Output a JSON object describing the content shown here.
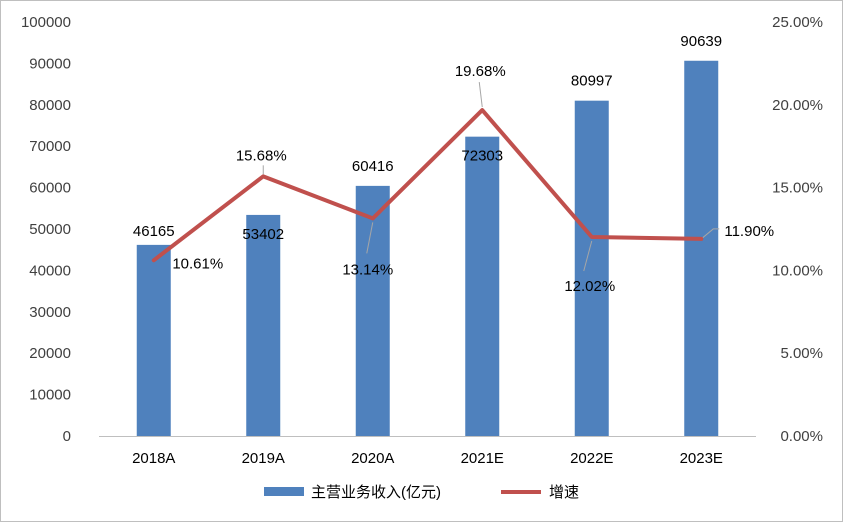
{
  "chart_data": {
    "type": "bar",
    "categories": [
      "2018A",
      "2019A",
      "2020A",
      "2021E",
      "2022E",
      "2023E"
    ],
    "series": [
      {
        "name": "主营业务收入(亿元)",
        "chart": "bar",
        "axis": "left",
        "color": "#4f81bd",
        "values": [
          46165,
          53402,
          60416,
          72303,
          80997,
          90639
        ],
        "labels": [
          "46165",
          "53402",
          "60416",
          "72303",
          "80997",
          "90639"
        ]
      },
      {
        "name": "增速",
        "chart": "line",
        "axis": "right",
        "color": "#c0504d",
        "values": [
          10.61,
          15.68,
          13.14,
          19.68,
          12.02,
          11.9
        ],
        "labels": [
          "10.61%",
          "15.68%",
          "13.14%",
          "19.68%",
          "12.02%",
          "11.90%"
        ]
      }
    ],
    "y_left": {
      "ylim": [
        0,
        100000
      ],
      "ticks": [
        "0",
        "10000",
        "20000",
        "30000",
        "40000",
        "50000",
        "60000",
        "70000",
        "80000",
        "90000",
        "100000"
      ]
    },
    "y_right": {
      "ylim": [
        0,
        25
      ],
      "ticks": [
        "0.00%",
        "5.00%",
        "10.00%",
        "15.00%",
        "20.00%",
        "25.00%"
      ]
    },
    "grid": false,
    "legend": "bottom-center"
  }
}
